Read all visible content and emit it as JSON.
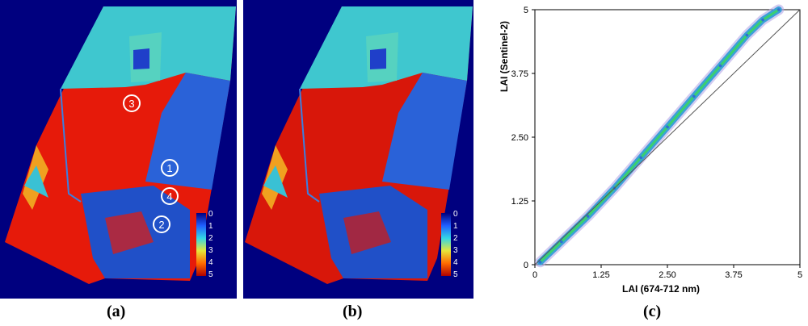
{
  "panels": [
    {
      "caption": "(a)",
      "markers": [
        "1",
        "2",
        "3",
        "4"
      ],
      "legend": [
        "0",
        "1",
        "2",
        "3",
        "4",
        "5"
      ]
    },
    {
      "caption": "(b)",
      "markers": [],
      "legend": [
        "0",
        "1",
        "2",
        "3",
        "4",
        "5"
      ]
    }
  ],
  "colors": {
    "background": "#00007f",
    "high": "#e61a0a",
    "medium": "#3fc7cf",
    "low": "#1f4fd6",
    "marker": "#ffffff"
  },
  "chart_data": {
    "type": "scatter",
    "caption": "(c)",
    "xlabel": "LAI (674-712 nm)",
    "ylabel": "LAI (Sentinel-2)",
    "xlim": [
      0,
      5
    ],
    "ylim": [
      0,
      5
    ],
    "xticks": [
      "0",
      "1.25",
      "2.50",
      "3.75",
      "5"
    ],
    "yticks": [
      "0",
      "1.25",
      "2.50",
      "3.75",
      "5"
    ],
    "grid": false,
    "reference_line": {
      "x": [
        0,
        5
      ],
      "y": [
        0,
        5
      ]
    },
    "series": [
      {
        "x": [
          0.1,
          0.5,
          1.0,
          1.5,
          2.0,
          2.5,
          3.0,
          3.5,
          4.0,
          4.3,
          4.6
        ],
        "y": [
          0.05,
          0.45,
          0.95,
          1.5,
          2.1,
          2.7,
          3.3,
          3.9,
          4.5,
          4.8,
          5.0
        ]
      }
    ]
  }
}
